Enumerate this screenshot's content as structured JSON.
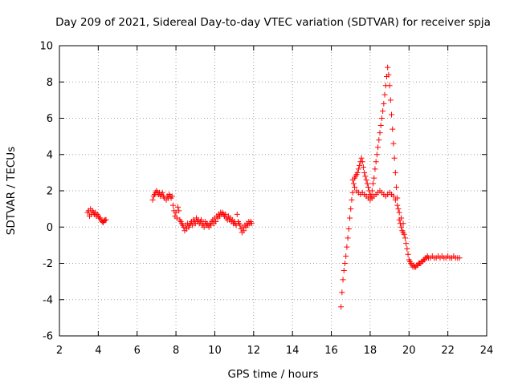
{
  "chart_data": {
    "type": "scatter",
    "title": "Day 209 of 2021, Sidereal Day-to-day VTEC variation (SDTVAR) for receiver spja",
    "xlabel": "GPS time / hours",
    "ylabel": "SDTVAR / TECUs",
    "xlim": [
      2,
      24
    ],
    "ylim": [
      -6,
      10
    ],
    "xticks": [
      "2",
      "4",
      "6",
      "8",
      "10",
      "12",
      "14",
      "16",
      "18",
      "20",
      "22",
      "24"
    ],
    "yticks": [
      "-6",
      "-4",
      "-2",
      "0",
      "2",
      "4",
      "6",
      "8",
      "10"
    ],
    "grid": true,
    "marker": "plus",
    "color": "#ff0000",
    "series": [
      {
        "name": "segment-1",
        "x": [
          3.45,
          3.5,
          3.55,
          3.6,
          3.65,
          3.7,
          3.75,
          3.8,
          3.85,
          3.9,
          3.95,
          4.0,
          4.05,
          4.1,
          4.15,
          4.2,
          4.25,
          4.3,
          4.35,
          4.4
        ],
        "y": [
          0.8,
          0.9,
          0.6,
          1.0,
          0.7,
          0.9,
          0.8,
          0.7,
          0.8,
          0.6,
          0.7,
          0.6,
          0.5,
          0.5,
          0.4,
          0.3,
          0.25,
          0.35,
          0.4,
          0.4
        ]
      },
      {
        "name": "segment-2",
        "x": [
          6.8,
          6.85,
          6.9,
          6.95,
          7.0,
          7.05,
          7.1,
          7.15,
          7.2,
          7.25,
          7.3,
          7.35,
          7.4,
          7.5,
          7.55,
          7.6,
          7.65,
          7.7,
          7.75,
          7.8,
          7.85,
          7.9,
          7.95,
          8.0,
          8.05,
          8.1,
          8.15,
          8.2,
          8.25,
          8.3,
          8.35,
          8.4,
          8.45,
          8.5,
          8.55,
          8.6,
          8.65,
          8.7,
          8.75,
          8.8,
          8.85,
          8.9,
          8.95,
          9.0,
          9.05,
          9.1,
          9.15,
          9.2,
          9.25,
          9.3,
          9.35,
          9.4,
          9.45,
          9.5,
          9.55,
          9.6,
          9.65,
          9.7,
          9.75,
          9.8,
          9.85,
          9.9,
          9.95,
          10.0,
          10.05,
          10.1,
          10.15,
          10.2,
          10.25,
          10.3,
          10.35,
          10.4,
          10.45,
          10.5,
          10.55,
          10.6,
          10.65,
          10.7,
          10.75,
          10.8,
          10.85,
          10.9,
          10.95,
          11.0,
          11.05,
          11.1,
          11.15,
          11.2,
          11.25,
          11.3,
          11.35,
          11.4,
          11.45,
          11.5,
          11.55,
          11.6,
          11.65,
          11.7,
          11.75,
          11.8,
          11.85,
          11.9
        ],
        "y": [
          1.5,
          1.7,
          1.8,
          1.9,
          2.0,
          1.9,
          1.8,
          1.9,
          1.7,
          1.8,
          1.9,
          1.7,
          1.6,
          1.5,
          1.7,
          1.6,
          1.8,
          1.7,
          1.6,
          1.7,
          1.2,
          0.9,
          0.6,
          0.8,
          0.5,
          1.1,
          0.9,
          0.4,
          0.3,
          0.2,
          0.1,
          0.0,
          -0.2,
          0.1,
          -0.1,
          0.2,
          0.0,
          0.1,
          0.2,
          0.3,
          0.1,
          0.4,
          0.3,
          0.2,
          0.5,
          0.3,
          0.4,
          0.2,
          0.3,
          0.4,
          0.1,
          0.2,
          0.0,
          0.3,
          0.1,
          0.2,
          0.1,
          0.0,
          0.2,
          0.1,
          0.3,
          0.4,
          0.2,
          0.5,
          0.3,
          0.6,
          0.5,
          0.7,
          0.6,
          0.8,
          0.7,
          0.8,
          0.7,
          0.6,
          0.7,
          0.5,
          0.4,
          0.6,
          0.4,
          0.5,
          0.3,
          0.4,
          0.2,
          0.3,
          0.2,
          0.1,
          0.7,
          0.3,
          0.2,
          0.1,
          -0.1,
          -0.3,
          0.0,
          -0.2,
          0.1,
          0.0,
          0.2,
          0.1,
          0.3,
          0.2,
          0.3,
          0.2
        ]
      },
      {
        "name": "segment-3",
        "x": [
          16.5,
          16.55,
          16.6,
          16.65,
          16.7,
          16.75,
          16.8,
          16.85,
          16.9,
          16.95,
          17.0,
          17.05,
          17.1,
          17.15,
          17.2,
          17.25,
          17.3,
          17.35,
          17.4,
          17.45,
          17.5,
          17.55,
          17.6,
          17.65,
          17.7,
          17.75,
          17.8,
          17.85,
          17.9,
          17.95,
          18.0,
          18.05,
          18.1,
          18.15,
          18.2,
          18.25,
          18.3,
          18.35,
          18.4,
          18.45,
          18.5,
          18.55,
          18.6,
          18.65,
          18.7,
          18.75,
          18.8,
          18.85,
          18.9,
          18.95,
          19.0,
          19.05,
          19.1,
          19.15,
          19.2,
          19.25,
          19.3,
          19.35,
          19.4,
          19.45,
          19.5,
          19.55,
          19.6,
          19.65,
          19.7,
          19.75,
          19.8,
          19.85,
          19.9,
          19.95,
          20.0,
          20.05,
          20.1,
          20.15,
          20.2,
          20.25,
          20.3,
          20.35,
          20.4,
          20.45,
          20.5,
          20.55,
          20.6,
          20.65,
          20.7,
          20.75,
          20.8,
          20.85,
          20.9,
          20.95,
          21.0,
          21.1,
          21.2,
          21.3,
          21.4,
          21.5,
          21.6,
          21.7,
          21.8,
          21.9,
          22.0,
          22.1,
          22.2,
          22.3,
          22.4,
          22.5,
          22.6
        ],
        "y": [
          -4.4,
          -3.6,
          -2.9,
          -2.4,
          -2.0,
          -1.6,
          -1.1,
          -0.6,
          -0.1,
          0.5,
          1.0,
          1.5,
          1.9,
          2.4,
          2.7,
          2.8,
          2.9,
          3.0,
          3.2,
          3.4,
          3.6,
          3.8,
          3.6,
          3.3,
          3.0,
          2.8,
          2.6,
          2.4,
          2.2,
          2.0,
          1.8,
          1.7,
          2.0,
          2.4,
          2.7,
          3.2,
          3.6,
          4.0,
          4.4,
          4.8,
          5.2,
          5.6,
          6.0,
          6.4,
          6.8,
          7.3,
          7.8,
          8.3,
          8.8,
          8.4,
          7.8,
          7.0,
          6.2,
          5.4,
          4.6,
          3.8,
          3.0,
          2.2,
          1.6,
          1.0,
          0.4,
          0.2,
          0.0,
          -0.2,
          -0.3,
          -0.4,
          -0.6,
          -0.9,
          -1.2,
          -1.5,
          -1.8,
          -1.9,
          -2.0,
          -2.1,
          -2.2,
          -2.1,
          -2.2,
          -2.2,
          -2.1,
          -2.1,
          -2.0,
          -2.0,
          -2.0,
          -1.9,
          -1.9,
          -1.8,
          -1.8,
          -1.7,
          -1.7,
          -1.6,
          -1.7,
          -1.7,
          -1.6,
          -1.7,
          -1.7,
          -1.6,
          -1.7,
          -1.6,
          -1.7,
          -1.7,
          -1.6,
          -1.7,
          -1.7,
          -1.6,
          -1.7,
          -1.7,
          -1.7
        ]
      },
      {
        "name": "segment-3-lower-branch",
        "x": [
          17.1,
          17.2,
          17.3,
          17.4,
          17.5,
          17.6,
          17.7,
          17.8,
          17.9,
          18.0,
          18.1,
          18.2,
          18.3,
          18.4,
          18.5,
          18.6,
          18.7,
          18.8,
          18.9,
          19.0,
          19.1,
          19.2,
          19.3,
          19.4,
          19.5,
          19.6,
          19.7
        ],
        "y": [
          2.6,
          2.2,
          2.0,
          1.9,
          1.8,
          1.9,
          1.8,
          1.7,
          1.6,
          1.5,
          1.6,
          1.7,
          1.8,
          1.9,
          2.0,
          1.9,
          1.8,
          1.7,
          1.8,
          1.9,
          1.8,
          1.7,
          1.5,
          1.2,
          0.8,
          0.5,
          0.2
        ]
      }
    ]
  }
}
